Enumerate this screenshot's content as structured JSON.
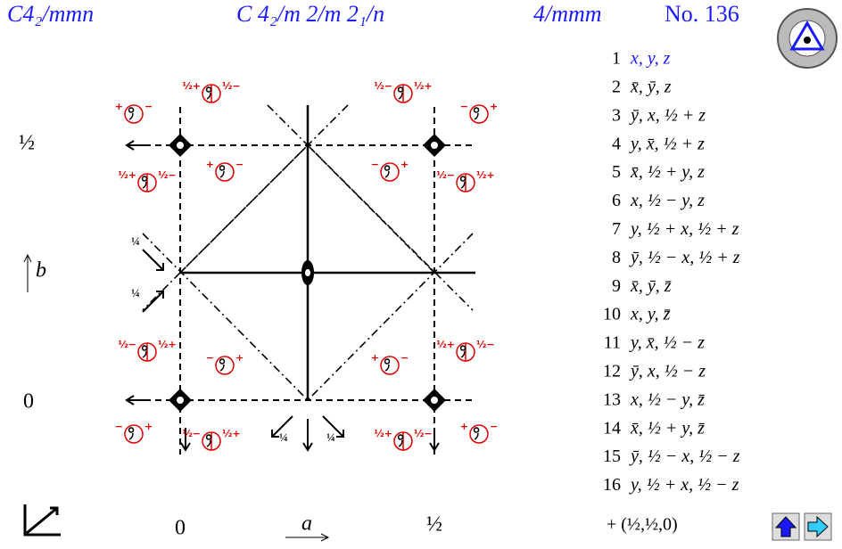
{
  "header": {
    "short_symbol": "C4₂/mmn",
    "full_symbol": "C 4₂/m 2/m 2₁/n",
    "point_group": "4/mmm",
    "number": "No. 136"
  },
  "axes": {
    "left_top": "½",
    "b": "b",
    "left_bottom": "0",
    "bottom_left": "0",
    "a": "a",
    "bottom_right": "½"
  },
  "symbols": [
    {
      "left": "½+",
      "right": "½−"
    },
    {
      "left": "+",
      "right": "−"
    },
    {
      "left": "½−",
      "right": "½+"
    },
    {
      "left": "−",
      "right": "+"
    },
    {
      "left": "½+",
      "right": "½−"
    },
    {
      "left": "+",
      "right": "−"
    },
    {
      "left": "−",
      "right": "+"
    },
    {
      "left": "½−",
      "right": "½+"
    },
    {
      "left": "½−",
      "right": "½+"
    },
    {
      "left": "−",
      "right": "+"
    },
    {
      "left": "+",
      "right": "−"
    },
    {
      "left": "½+",
      "right": "½−"
    },
    {
      "left": "−",
      "right": "+"
    },
    {
      "left": "½−",
      "right": "½+"
    },
    {
      "left": "½+",
      "right": "½−"
    },
    {
      "left": "+",
      "right": "−"
    }
  ],
  "quarter_labels": [
    "¼",
    "¼",
    "¼",
    "¼"
  ],
  "positions": [
    {
      "n": 1,
      "text": "x, y, z"
    },
    {
      "n": 2,
      "text": "x̄, ȳ, z"
    },
    {
      "n": 3,
      "text": "ȳ, x, ½ + z"
    },
    {
      "n": 4,
      "text": "y, x̄, ½ + z"
    },
    {
      "n": 5,
      "text": "x̄, ½ + y, z"
    },
    {
      "n": 6,
      "text": "x, ½ − y, z"
    },
    {
      "n": 7,
      "text": "y, ½ + x, ½ + z"
    },
    {
      "n": 8,
      "text": "ȳ, ½ − x, ½ + z"
    },
    {
      "n": 9,
      "text": "x̄, ȳ, z̄"
    },
    {
      "n": 10,
      "text": "x, y, z̄"
    },
    {
      "n": 11,
      "text": "y, x̄, ½ − z"
    },
    {
      "n": 12,
      "text": "ȳ, x, ½ − z"
    },
    {
      "n": 13,
      "text": "x, ½ − y, z̄"
    },
    {
      "n": 14,
      "text": "x̄, ½ + y, z̄"
    },
    {
      "n": 15,
      "text": "ȳ, ½ − x, ½ − z"
    },
    {
      "n": 16,
      "text": "y, ½ + x, ½ − z"
    }
  ],
  "centering": "+ (½,½,0)"
}
